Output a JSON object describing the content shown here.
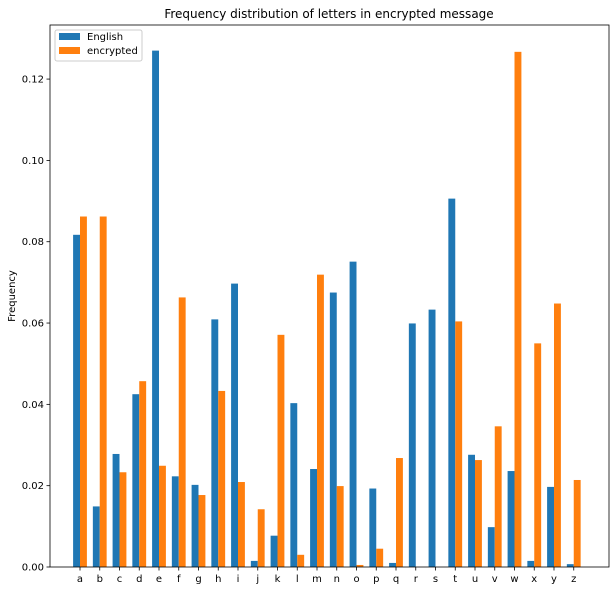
{
  "chart_data": {
    "type": "bar",
    "title": "Frequency distribution of letters in encrypted message",
    "xlabel": "",
    "ylabel": "Frequency",
    "ylim": [
      0,
      0.1333
    ],
    "yticks": [
      "0.00",
      "0.02",
      "0.04",
      "0.06",
      "0.08",
      "0.10",
      "0.12"
    ],
    "legend_position": "top-left",
    "categories": [
      "a",
      "b",
      "c",
      "d",
      "e",
      "f",
      "g",
      "h",
      "i",
      "j",
      "k",
      "l",
      "m",
      "n",
      "o",
      "p",
      "q",
      "r",
      "s",
      "t",
      "u",
      "v",
      "w",
      "x",
      "y",
      "z"
    ],
    "series": [
      {
        "name": "English",
        "color": "#1f77b4",
        "values": [
          0.0817,
          0.0149,
          0.0278,
          0.0425,
          0.127,
          0.0223,
          0.0202,
          0.0609,
          0.0697,
          0.0015,
          0.0077,
          0.0403,
          0.0241,
          0.0675,
          0.0751,
          0.0193,
          0.001,
          0.0599,
          0.0633,
          0.0906,
          0.0276,
          0.0098,
          0.0236,
          0.0015,
          0.0197,
          0.0007
        ]
      },
      {
        "name": "encrypted",
        "color": "#ff7f0e",
        "values": [
          0.0862,
          0.0862,
          0.0233,
          0.0457,
          0.0249,
          0.0663,
          0.0177,
          0.0433,
          0.0209,
          0.0142,
          0.0571,
          0.003,
          0.0719,
          0.0199,
          0.0005,
          0.0045,
          0.0268,
          0.0,
          0.0,
          0.0604,
          0.0263,
          0.0346,
          0.1267,
          0.055,
          0.0648,
          0.0214
        ]
      }
    ]
  }
}
